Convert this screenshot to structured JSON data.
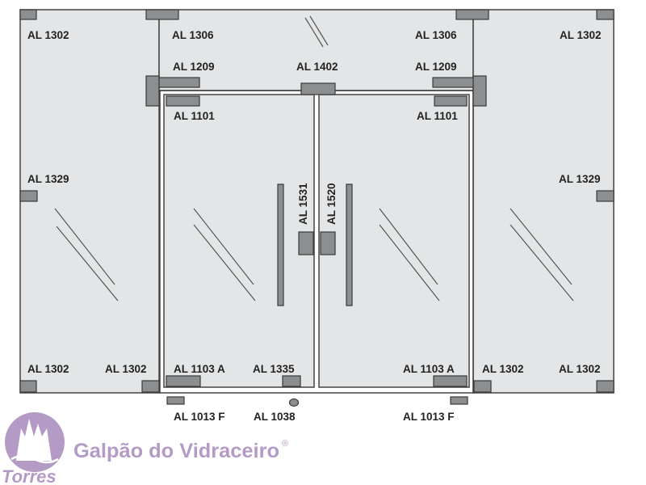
{
  "colors": {
    "glass": "#e3e5e6",
    "frame": "#444444",
    "hardware": "#8c8e90",
    "hardware_stroke": "#3a3a3a",
    "label": "#222222",
    "brand": "#b49bc6",
    "brand_dark": "#8e6fa8"
  },
  "labels": {
    "al1302_tl": "AL 1302",
    "al1306_l": "AL 1306",
    "al1306_r": "AL 1306",
    "al1302_tr": "AL 1302",
    "al1209_l": "AL 1209",
    "al1402": "AL 1402",
    "al1209_r": "AL 1209",
    "al1101_l": "AL 1101",
    "al1101_r": "AL 1101",
    "al1329_l": "AL 1329",
    "al1329_r": "AL 1329",
    "al1531": "AL 1531",
    "al1520": "AL 1520",
    "al1302_bl1": "AL 1302",
    "al1302_bl2": "AL 1302",
    "al1103a_l": "AL 1103 A",
    "al1335": "AL 1335",
    "al1103a_r": "AL 1103 A",
    "al1302_br1": "AL 1302",
    "al1302_br2": "AL 1302",
    "al1013f_l": "AL 1013 F",
    "al1038": "AL 1038",
    "al1013f_r": "AL 1013 F"
  },
  "brand": {
    "name": "Galpão do Vidraceiro",
    "registered": "®",
    "sub": "Torres"
  }
}
